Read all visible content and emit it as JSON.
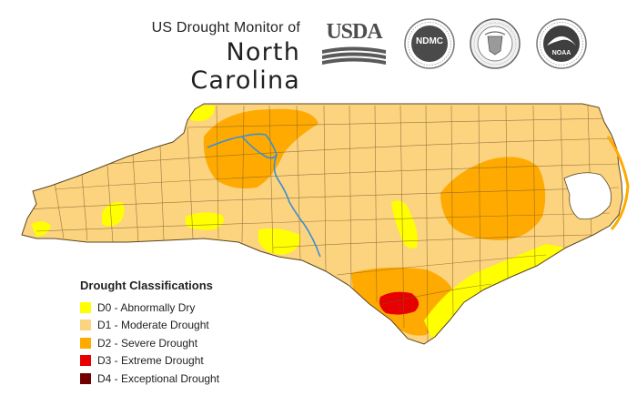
{
  "header": {
    "subtitle": "US Drought Monitor of",
    "title": "North Carolina"
  },
  "logos": [
    {
      "name": "usda-logo",
      "text": "USDA"
    },
    {
      "name": "ndmc-logo",
      "text": "NDMC"
    },
    {
      "name": "doc-seal",
      "text": ""
    },
    {
      "name": "noaa-logo",
      "text": "NOAA"
    }
  ],
  "legend": {
    "title": "Drought Classifications",
    "items": [
      {
        "label": "D0 - Abnormally Dry",
        "color": "#ffff00"
      },
      {
        "label": "D1 - Moderate Drought",
        "color": "#fcd37f"
      },
      {
        "label": "D2 - Severe Drought",
        "color": "#ffaa00"
      },
      {
        "label": "D3 - Extreme Drought",
        "color": "#e60000"
      },
      {
        "label": "D4 - Exceptional Drought",
        "color": "#730000"
      }
    ]
  },
  "map": {
    "state": "North Carolina",
    "base_class": "D1",
    "river_color": "#3b8fd4",
    "county_line_color": "#7a5a2a"
  }
}
